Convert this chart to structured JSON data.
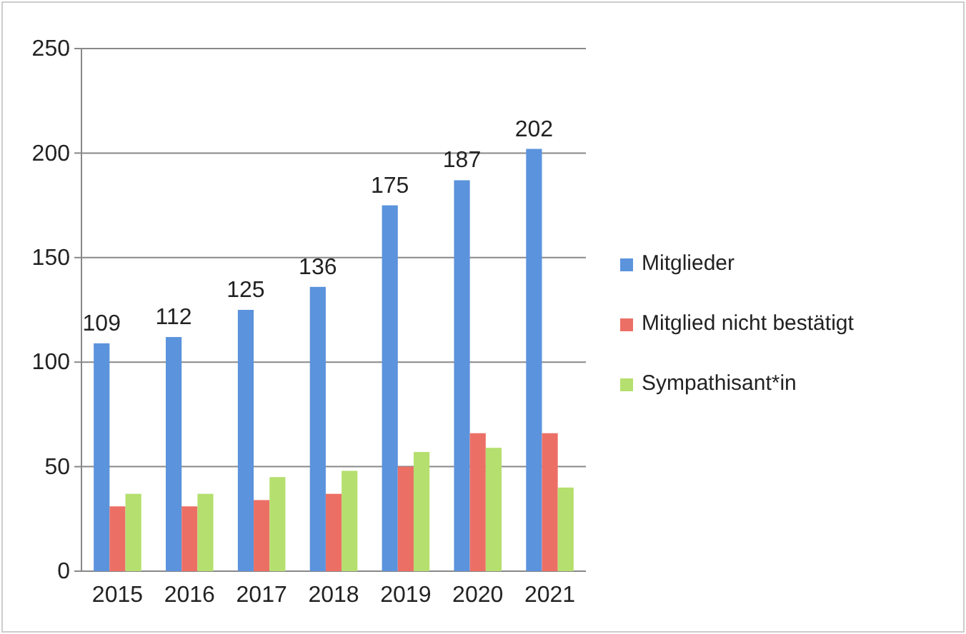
{
  "chart_data": {
    "type": "bar",
    "categories": [
      "2015",
      "2016",
      "2017",
      "2018",
      "2019",
      "2020",
      "2021"
    ],
    "series": [
      {
        "name": "Mitglieder",
        "color": "#5b93dc",
        "values": [
          109,
          112,
          125,
          136,
          175,
          187,
          202
        ],
        "value_labels": [
          "109",
          "112",
          "125",
          "136",
          "175",
          "187",
          "202"
        ]
      },
      {
        "name": "Mitglied nicht bestätigt",
        "color": "#ec6f66",
        "values": [
          31,
          31,
          34,
          37,
          50,
          66,
          66
        ]
      },
      {
        "name": "Sympathisant*in",
        "color": "#b5df6e",
        "values": [
          37,
          37,
          45,
          48,
          57,
          59,
          40
        ]
      }
    ],
    "ylim": [
      0,
      250
    ],
    "yticks": [
      0,
      50,
      100,
      150,
      200,
      250
    ],
    "grid": "y",
    "legend": "right"
  }
}
